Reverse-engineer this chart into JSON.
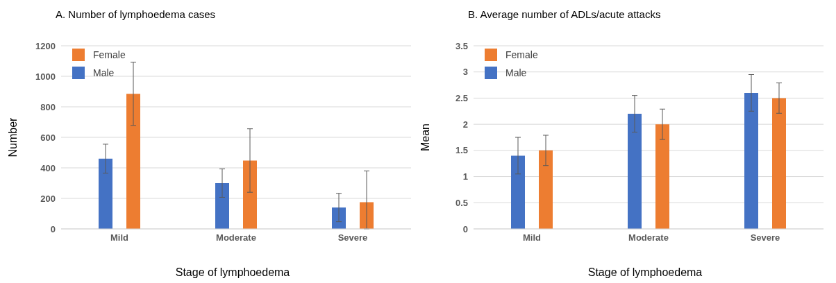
{
  "chart_data": [
    {
      "type": "bar",
      "title": "A. Number of lymphoedema cases",
      "xlabel": "Stage of lymphoedema",
      "ylabel": "Number",
      "categories": [
        "Mild",
        "Moderate",
        "Severe"
      ],
      "series": [
        {
          "name": "Male",
          "color": "#4472c4",
          "values": [
            460,
            300,
            140
          ],
          "errors": [
            95,
            93,
            93
          ]
        },
        {
          "name": "Female",
          "color": "#ed7d31",
          "values": [
            885,
            448,
            175
          ],
          "errors": [
            207,
            208,
            [
              0,
              380
            ]
          ]
        }
      ],
      "ylim": [
        0,
        1200
      ],
      "yticks": [
        0,
        200,
        400,
        600,
        800,
        1000,
        1200
      ],
      "grid": "y",
      "legend": "top left"
    },
    {
      "type": "bar",
      "title": "B. Average number of ADLs/acute attacks",
      "xlabel": "Stage of lymphoedema",
      "ylabel": "Mean",
      "categories": [
        "Mild",
        "Moderate",
        "Severe"
      ],
      "series": [
        {
          "name": "Male",
          "color": "#4472c4",
          "values": [
            1.4,
            2.2,
            2.6
          ],
          "errors": [
            0.35,
            0.35,
            0.35
          ]
        },
        {
          "name": "Female",
          "color": "#ed7d31",
          "values": [
            1.5,
            2.0,
            2.5
          ],
          "errors": [
            0.29,
            0.29,
            0.29
          ]
        }
      ],
      "ylim": [
        0,
        3.5
      ],
      "yticks": [
        0,
        0.5,
        1,
        1.5,
        2,
        2.5,
        3,
        3.5
      ],
      "grid": "y",
      "legend": "top left"
    }
  ]
}
